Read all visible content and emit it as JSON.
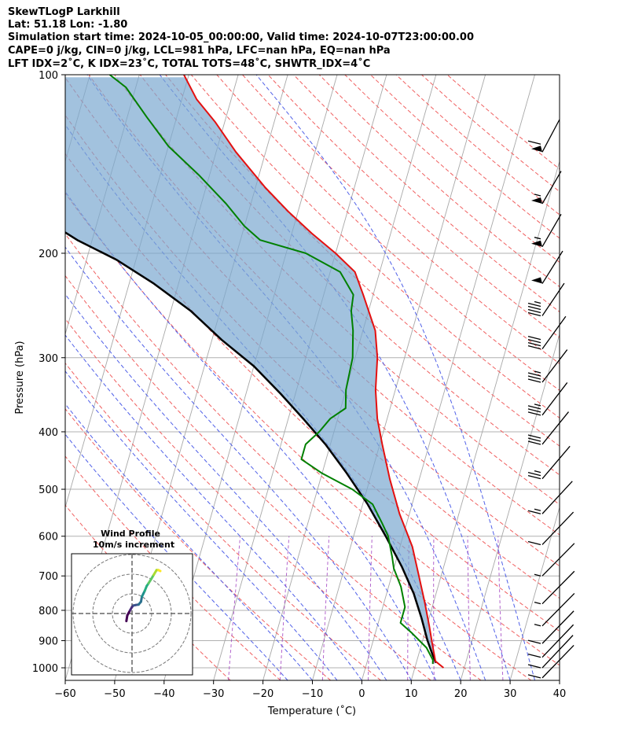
{
  "header": {
    "line1": "SkewTLogP Larkhill",
    "line2": "Lat: 51.18   Lon: -1.80",
    "line3": "Simulation start time: 2024-10-05_00:00:00, Valid time: 2024-10-07T23:00:00.00",
    "line4": "CAPE=0 j/kg, CIN=0 j/kg, LCL=981 hPa, LFC=nan hPa, EQ=nan hPa",
    "line5": "LFT IDX=2˚C, K IDX=23˚C, TOTAL TOTS=48˚C, SHWTR_IDX=4˚C"
  },
  "chart_data": {
    "type": "line",
    "subtype": "skew-t log-p",
    "xlabel": "Temperature (˚C)",
    "ylabel": "Pressure (hPa)",
    "xlim": [
      -60,
      40
    ],
    "ylim": [
      1050,
      100
    ],
    "y_scale": "log",
    "x_ticks": [
      "−60",
      "−50",
      "−40",
      "−30",
      "−20",
      "−10",
      "0",
      "10",
      "20",
      "30",
      "40"
    ],
    "y_ticks": [
      "100",
      "200",
      "300",
      "400",
      "500",
      "600",
      "700",
      "800",
      "900",
      "1000"
    ],
    "grid": true,
    "series": [
      {
        "role": "temperature",
        "color": "#e41010",
        "points": [
          [
            15.8,
            1000
          ],
          [
            13.8,
            975
          ],
          [
            12.5,
            925
          ],
          [
            10.5,
            850
          ],
          [
            8.2,
            775
          ],
          [
            5.5,
            700
          ],
          [
            2.5,
            625
          ],
          [
            -2,
            550
          ],
          [
            -6,
            480
          ],
          [
            -9.5,
            420
          ],
          [
            -12,
            380
          ],
          [
            -14,
            340
          ],
          [
            -15.5,
            300
          ],
          [
            -17.5,
            270
          ],
          [
            -20,
            250
          ],
          [
            -22,
            235
          ],
          [
            -25,
            215
          ],
          [
            -30,
            200
          ],
          [
            -36,
            185
          ],
          [
            -42,
            170
          ],
          [
            -48,
            155
          ],
          [
            -56,
            135
          ],
          [
            -62,
            120
          ],
          [
            -67,
            110
          ],
          [
            -71,
            100
          ]
        ]
      },
      {
        "role": "dewpoint",
        "color": "#008000",
        "points": [
          [
            13.4,
            985
          ],
          [
            13.2,
            970
          ],
          [
            11.2,
            925
          ],
          [
            7.5,
            875
          ],
          [
            4.5,
            840
          ],
          [
            4.5,
            790
          ],
          [
            2.5,
            730
          ],
          [
            0,
            680
          ],
          [
            -1,
            650
          ],
          [
            -3,
            600
          ],
          [
            -5,
            570
          ],
          [
            -8,
            530
          ],
          [
            -13,
            500
          ],
          [
            -20,
            470
          ],
          [
            -25,
            445
          ],
          [
            -25,
            420
          ],
          [
            -23,
            400
          ],
          [
            -21.5,
            380
          ],
          [
            -19,
            365
          ],
          [
            -20,
            340
          ],
          [
            -20.5,
            300
          ],
          [
            -22,
            270
          ],
          [
            -23.5,
            250
          ],
          [
            -24,
            235
          ],
          [
            -28,
            215
          ],
          [
            -36,
            200
          ],
          [
            -46,
            190
          ],
          [
            -50,
            180
          ],
          [
            -55,
            165
          ],
          [
            -62,
            148
          ],
          [
            -70,
            132
          ],
          [
            -76,
            118
          ],
          [
            -82,
            105
          ],
          [
            -86,
            100
          ]
        ]
      },
      {
        "role": "parcel",
        "color": "#000000",
        "points": [
          [
            14,
            981
          ],
          [
            12.8,
            950
          ],
          [
            11,
            900
          ],
          [
            8.5,
            825
          ],
          [
            5.5,
            750
          ],
          [
            1.5,
            675
          ],
          [
            -3.5,
            600
          ],
          [
            -9,
            530
          ],
          [
            -15,
            470
          ],
          [
            -21,
            420
          ],
          [
            -27,
            380
          ],
          [
            -33,
            345
          ],
          [
            -40,
            310
          ],
          [
            -48,
            280
          ],
          [
            -56,
            250
          ],
          [
            -65,
            225
          ],
          [
            -74,
            205
          ],
          [
            -83,
            190
          ],
          [
            -91,
            175
          ],
          [
            -100,
            160
          ],
          [
            -110,
            145
          ],
          [
            -120,
            130
          ],
          [
            -131,
            115
          ],
          [
            -140,
            100
          ]
        ]
      }
    ],
    "wind_profile": {
      "title": "Wind Profile",
      "subtitle": "10m/s increment",
      "ring_count": 3,
      "colormap": "viridis",
      "trace": [
        [
          -0.6,
          -0.8
        ],
        [
          -0.5,
          -0.2
        ],
        [
          -0.2,
          0.35
        ],
        [
          0.0,
          0.7
        ],
        [
          0.15,
          0.85
        ],
        [
          0.4,
          0.9
        ],
        [
          0.7,
          0.95
        ],
        [
          0.95,
          1.25
        ],
        [
          1.05,
          1.8
        ],
        [
          1.2,
          2.1
        ],
        [
          1.35,
          2.4
        ],
        [
          1.55,
          2.9
        ],
        [
          1.75,
          3.2
        ],
        [
          2.0,
          3.6
        ],
        [
          2.3,
          4.1
        ],
        [
          2.6,
          4.6
        ],
        [
          2.8,
          4.6
        ],
        [
          3.0,
          4.5
        ]
      ]
    },
    "barbs": {
      "pressures": [
        135,
        165,
        195,
        225,
        255,
        290,
        330,
        375,
        420,
        480,
        550,
        620,
        700,
        780,
        850,
        910,
        960,
        1000,
        1040
      ],
      "speeds_ms": [
        60,
        55,
        55,
        50,
        45,
        40,
        35,
        35,
        30,
        25,
        15,
        10,
        5,
        5,
        5,
        8,
        10,
        12,
        8
      ]
    }
  }
}
